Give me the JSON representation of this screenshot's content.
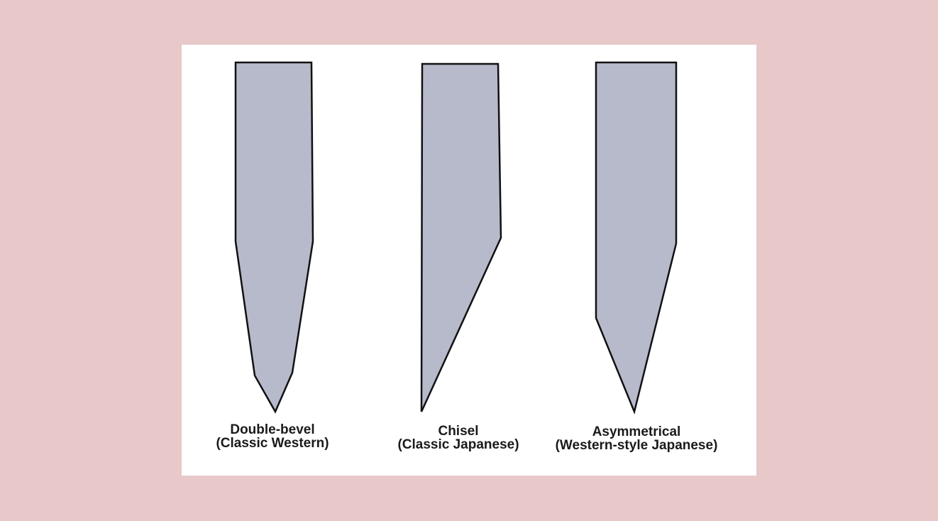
{
  "colors": {
    "background": "#e8c8c9",
    "panel": "#ffffff",
    "blade_fill": "#b6bacb",
    "blade_stroke": "#111111"
  },
  "blades": [
    {
      "name": "Double-bevel",
      "subtitle": "(Classic Western)"
    },
    {
      "name": "Chisel",
      "subtitle": "(Classic Japanese)"
    },
    {
      "name": "Asymmetrical",
      "subtitle": "(Western-style Japanese)"
    }
  ]
}
